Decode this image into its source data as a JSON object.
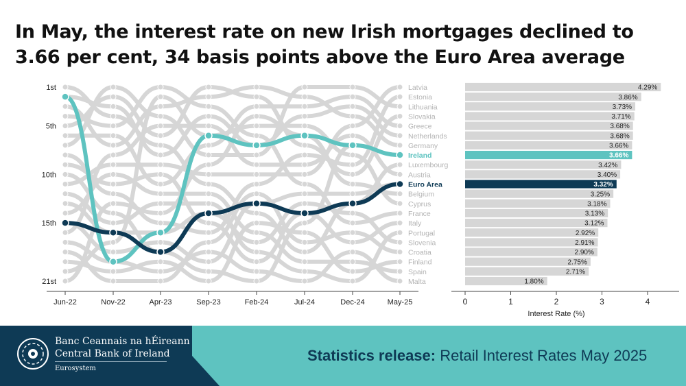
{
  "headline": "In May, the interest rate on new Irish mortgages declined to 3.66 per cent, 34 basis points above the Euro Area average",
  "colors": {
    "ireland": "#5ec3c0",
    "euro_area": "#0e3a55",
    "others": "#d6d6d6",
    "label_grey": "#b3b3b3",
    "navy": "#0e3a55",
    "teal": "#5ec3c0"
  },
  "chart_data": [
    {
      "type": "line",
      "title": "",
      "x": [
        "Jun-22",
        "Nov-22",
        "Apr-23",
        "Sep-23",
        "Feb-24",
        "Jul-24",
        "Dec-24",
        "May-25"
      ],
      "y_rank_labels": [
        {
          "rank": 1,
          "label": "1st"
        },
        {
          "rank": 5,
          "label": "5th"
        },
        {
          "rank": 10,
          "label": "10th"
        },
        {
          "rank": 15,
          "label": "15th"
        },
        {
          "rank": 21,
          "label": "21st"
        }
      ],
      "y_reversed": true,
      "ylim": [
        1,
        21
      ],
      "series": [
        {
          "name": "Ireland",
          "values": [
            2,
            19,
            16,
            6,
            7,
            6,
            7,
            8
          ]
        },
        {
          "name": "Euro Area",
          "values": [
            15,
            16,
            18,
            14,
            13,
            14,
            13,
            11
          ]
        }
      ],
      "rank_labels_at_end": [
        "Latvia",
        "Estonia",
        "Lithuania",
        "Slovakia",
        "Greece",
        "Netherlands",
        "Germany",
        "Ireland",
        "Luxembourg",
        "Austria",
        "Euro Area",
        "Belgium",
        "Cyprus",
        "France",
        "Italy",
        "Portugal",
        "Slovenia",
        "Croatia",
        "Finland",
        "Spain",
        "Malta"
      ]
    },
    {
      "type": "bar",
      "orientation": "horizontal",
      "title": "",
      "xlabel": "Interest Rate (%)",
      "ylabel": "",
      "xlim": [
        0,
        4.5
      ],
      "xticks": [
        0,
        1,
        2,
        3,
        4
      ],
      "categories": [
        "Latvia",
        "Estonia",
        "Lithuania",
        "Slovakia",
        "Greece",
        "Netherlands",
        "Germany",
        "Ireland",
        "Luxembourg",
        "Austria",
        "Euro Area",
        "Belgium",
        "Cyprus",
        "France",
        "Italy",
        "Portugal",
        "Slovenia",
        "Croatia",
        "Finland",
        "Spain",
        "Malta"
      ],
      "values": [
        4.29,
        3.86,
        3.73,
        3.71,
        3.68,
        3.68,
        3.66,
        3.66,
        3.42,
        3.4,
        3.32,
        3.25,
        3.18,
        3.13,
        3.12,
        2.92,
        2.91,
        2.9,
        2.75,
        2.71,
        1.8
      ],
      "value_labels": [
        "4.29%",
        "3.86%",
        "3.73%",
        "3.71%",
        "3.68%",
        "3.68%",
        "3.66%",
        "3.66%",
        "3.42%",
        "3.40%",
        "3.32%",
        "3.25%",
        "3.18%",
        "3.13%",
        "3.12%",
        "2.92%",
        "2.91%",
        "2.90%",
        "2.75%",
        "2.71%",
        "1.80%"
      ],
      "highlight": {
        "Ireland": "#5ec3c0",
        "Euro Area": "#0e3a55"
      }
    }
  ],
  "footer": {
    "bank_name_irish": "Banc Ceannais na hÉireann",
    "bank_name_english": "Central Bank of Ireland",
    "eurosystem": "Eurosystem",
    "release_bold": "Statistics release:",
    "release_text": " Retail Interest Rates May 2025"
  }
}
